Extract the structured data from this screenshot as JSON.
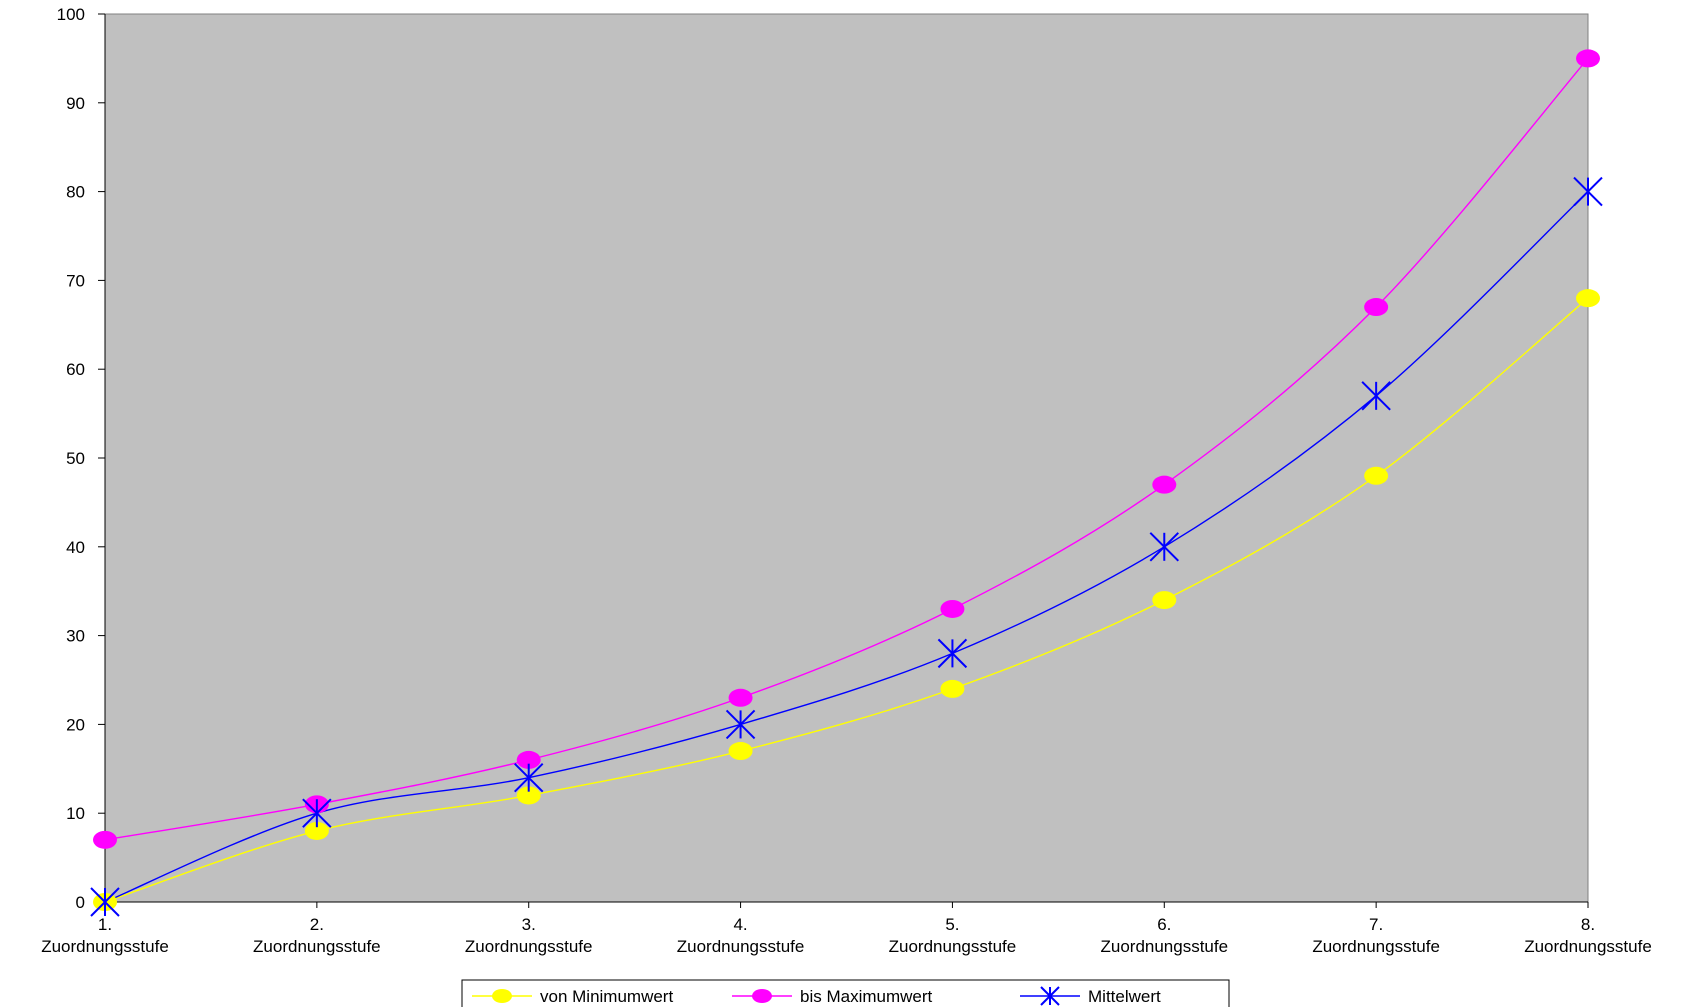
{
  "chart_data": {
    "type": "line",
    "title": "",
    "xlabel": "",
    "ylabel": "",
    "categories": [
      [
        "1.",
        "Zuordnungsstufe"
      ],
      [
        "2.",
        "Zuordnungsstufe"
      ],
      [
        "3.",
        "Zuordnungsstufe"
      ],
      [
        "4.",
        "Zuordnungsstufe"
      ],
      [
        "5.",
        "Zuordnungsstufe"
      ],
      [
        "6.",
        "Zuordnungsstufe"
      ],
      [
        "7.",
        "Zuordnungsstufe"
      ],
      [
        "8.",
        "Zuordnungsstufe"
      ]
    ],
    "ylim": [
      0,
      100
    ],
    "yticks": [
      0,
      10,
      20,
      30,
      40,
      50,
      60,
      70,
      80,
      90,
      100
    ],
    "grid": false,
    "plot_background": "#c0c0c0",
    "legend_position": "bottom",
    "series": [
      {
        "name": "von Minimumwert",
        "color": "#ffff00",
        "marker": "circle",
        "values": [
          0,
          8,
          12,
          17,
          24,
          34,
          48,
          68
        ]
      },
      {
        "name": "bis Maximumwert",
        "color": "#ff00ff",
        "marker": "circle",
        "values": [
          7,
          11,
          16,
          23,
          33,
          47,
          67,
          95
        ]
      },
      {
        "name": "Mittelwert",
        "color": "#0000ff",
        "marker": "asterisk",
        "values": [
          0,
          10,
          14,
          20,
          28,
          40,
          57,
          80
        ]
      }
    ]
  }
}
